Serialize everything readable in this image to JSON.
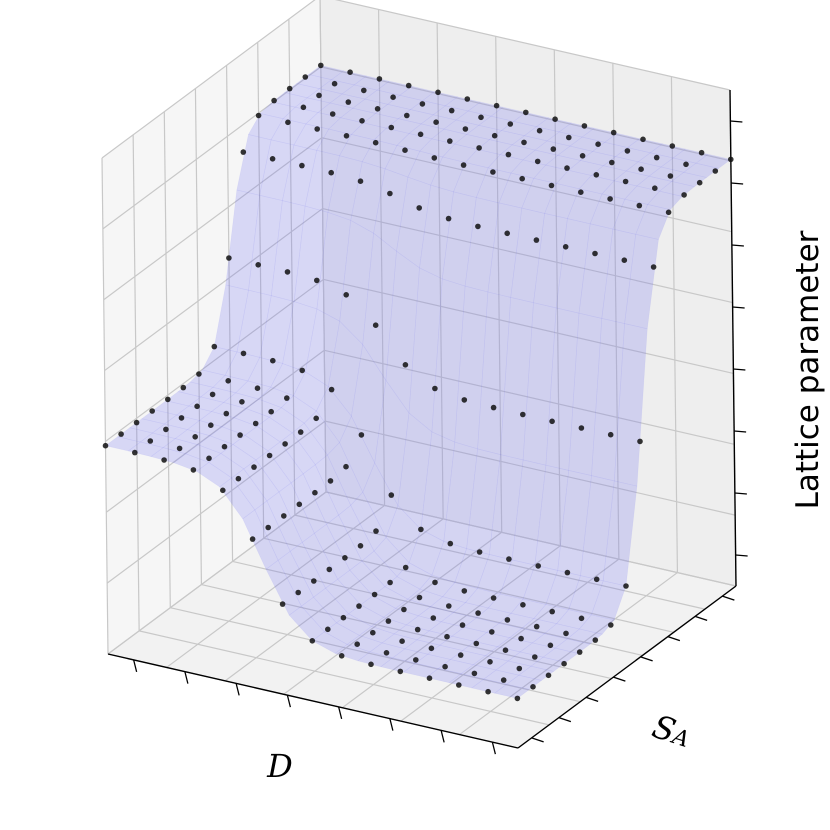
{
  "chart_data": {
    "type": "surface3d",
    "title": "",
    "xlabel": "D",
    "ylabel": "S_A",
    "zlabel": "Lattice parameter",
    "axis_labels_display": {
      "x": "D",
      "y_main": "S",
      "y_sub": "A",
      "z": "Lattice parameter"
    },
    "tick_labels_shown": false,
    "grid": true,
    "view": "3d-perspective",
    "surface": {
      "color": "#6a6af2",
      "alpha": 0.45,
      "description_rows": "ridge along the back edge, cliff drop, low plateau front-left, deep trough front-right"
    },
    "points_color": "#111111",
    "x_range": [
      0,
      1
    ],
    "y_range": [
      0,
      1
    ],
    "z_range": [
      0,
      1
    ],
    "ridge_level": 0.86,
    "plateau_level": 0.42,
    "trough_level": 0.1
  }
}
